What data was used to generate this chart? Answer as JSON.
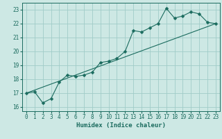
{
  "xlabel": "Humidex (Indice chaleur)",
  "bg_color": "#cde8e4",
  "grid_color": "#a0ccc8",
  "line_color": "#1a6b5e",
  "xlim": [
    -0.5,
    23.5
  ],
  "ylim": [
    15.7,
    23.5
  ],
  "xticks": [
    0,
    1,
    2,
    3,
    4,
    5,
    6,
    7,
    8,
    9,
    10,
    11,
    12,
    13,
    14,
    15,
    16,
    17,
    18,
    19,
    20,
    21,
    22,
    23
  ],
  "yticks": [
    16,
    17,
    18,
    19,
    20,
    21,
    22,
    23
  ],
  "curve1_x": [
    0,
    1,
    2,
    3,
    4,
    5,
    6,
    7,
    8,
    9,
    10,
    11,
    12,
    13,
    14,
    15,
    16,
    17,
    18,
    19,
    20,
    21,
    22,
    23
  ],
  "curve1_y": [
    17.0,
    17.1,
    16.3,
    16.6,
    17.8,
    18.3,
    18.2,
    18.3,
    18.5,
    19.2,
    19.3,
    19.5,
    20.0,
    21.5,
    21.4,
    21.7,
    22.0,
    23.1,
    22.4,
    22.55,
    22.85,
    22.7,
    22.1,
    22.0
  ],
  "curve2_x": [
    0,
    23
  ],
  "curve2_y": [
    17.0,
    22.0
  ],
  "marker_size": 2.5,
  "font_size_ticks": 5.5,
  "font_size_xlabel": 6.5
}
